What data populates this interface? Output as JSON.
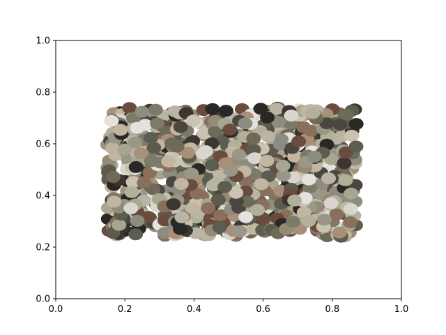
{
  "chart_data": {
    "type": "scatter",
    "title": "",
    "xlabel": "",
    "ylabel": "",
    "xlim": [
      0,
      1
    ],
    "ylim": [
      0,
      1
    ],
    "grid": false,
    "xticks": [
      "0.0",
      "0.2",
      "0.4",
      "0.6",
      "0.8",
      "1.0"
    ],
    "yticks": [
      "0.0",
      "0.2",
      "0.4",
      "0.6",
      "0.8",
      "1.0"
    ],
    "marker": "ellipse",
    "region": {
      "x": [
        0.15,
        0.87
      ],
      "y": [
        0.24,
        0.74
      ]
    },
    "n_points": 1100,
    "palette": [
      "#9a9788",
      "#b9b4a3",
      "#d8d6cf",
      "#7d7a6a",
      "#5f5a4e",
      "#3b3630",
      "#2a2824",
      "#a89078",
      "#8a6f5a",
      "#c9c3b2",
      "#6e6a58",
      "#b3b09a",
      "#e4e2dc",
      "#4a4640",
      "#958a76",
      "#a7a691",
      "#8c8c80",
      "#6a4c3e",
      "#c2b6a0",
      "#5a5d50"
    ]
  }
}
